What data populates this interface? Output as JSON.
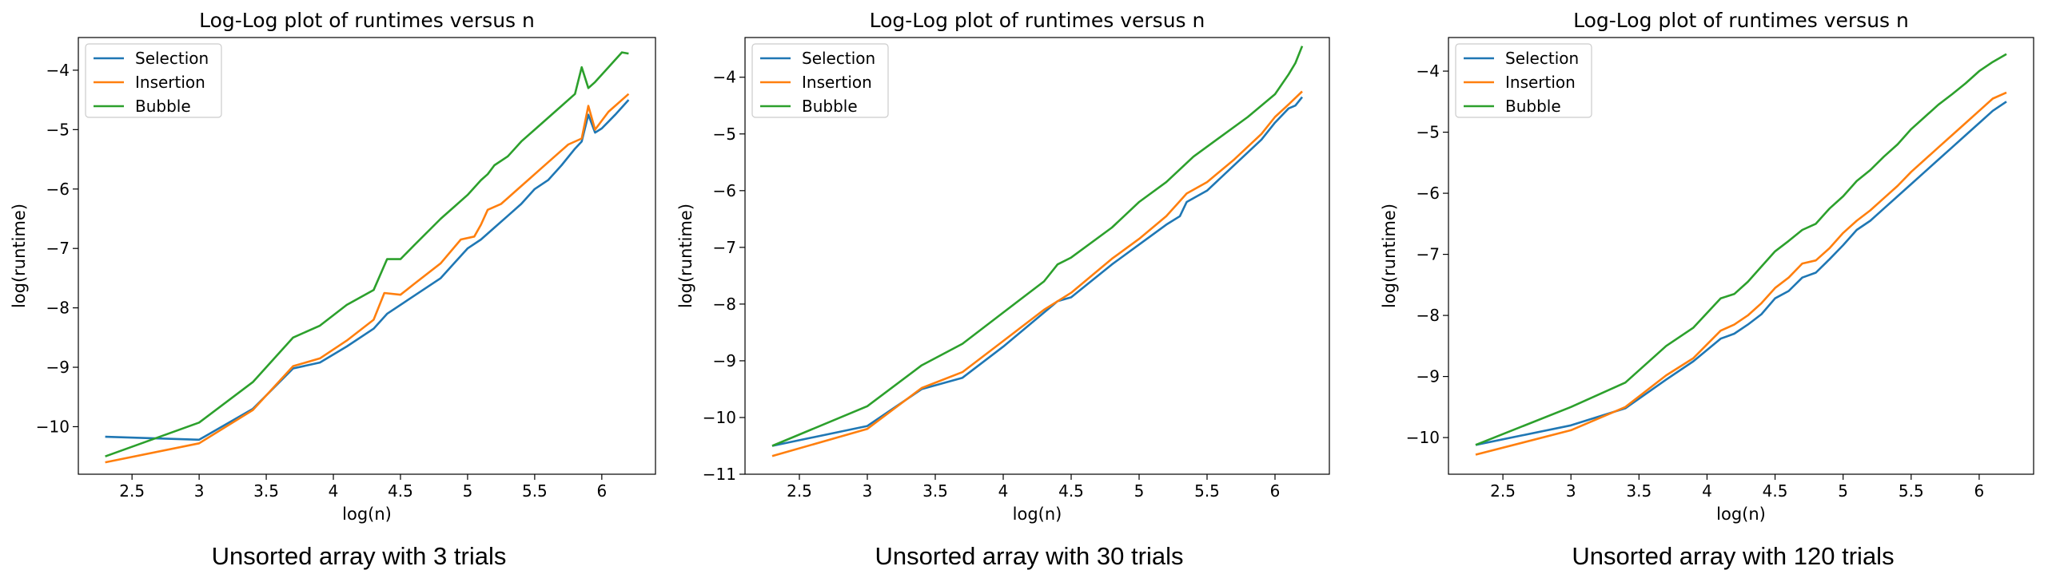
{
  "chart_data": [
    {
      "type": "line",
      "title": "Log-Log plot of runtimes versus n",
      "xlabel": "log(n)",
      "ylabel": "log(runtime)",
      "caption": "Unsorted array with 3 trials",
      "xlim": [
        2.1,
        6.4
      ],
      "ylim": [
        -10.8,
        -3.45
      ],
      "xticks": [
        2.5,
        3.0,
        3.5,
        4.0,
        4.5,
        5.0,
        5.5,
        6.0
      ],
      "yticks": [
        -10,
        -9,
        -8,
        -7,
        -6,
        -5,
        -4
      ],
      "legend_position": "upper-left",
      "series": [
        {
          "name": "Selection",
          "color": "#1f77b4",
          "x": [
            2.3,
            3.0,
            3.4,
            3.7,
            3.9,
            4.1,
            4.3,
            4.4,
            4.6,
            4.8,
            4.9,
            5.0,
            5.1,
            5.2,
            5.3,
            5.4,
            5.5,
            5.6,
            5.7,
            5.8,
            5.85,
            5.9,
            5.95,
            6.0,
            6.1,
            6.2
          ],
          "y": [
            -10.17,
            -10.22,
            -9.7,
            -9.02,
            -8.92,
            -8.65,
            -8.35,
            -8.1,
            -7.8,
            -7.5,
            -7.25,
            -7.0,
            -6.85,
            -6.65,
            -6.45,
            -6.25,
            -6.0,
            -5.85,
            -5.6,
            -5.32,
            -5.2,
            -4.75,
            -5.05,
            -4.98,
            -4.75,
            -4.5
          ]
        },
        {
          "name": "Insertion",
          "color": "#ff7f0e",
          "x": [
            2.3,
            3.0,
            3.4,
            3.7,
            3.9,
            4.1,
            4.3,
            4.38,
            4.5,
            4.6,
            4.8,
            4.95,
            5.05,
            5.1,
            5.15,
            5.25,
            5.35,
            5.45,
            5.55,
            5.65,
            5.75,
            5.85,
            5.9,
            5.95,
            6.05,
            6.2
          ],
          "y": [
            -10.6,
            -10.28,
            -9.72,
            -8.98,
            -8.85,
            -8.55,
            -8.2,
            -7.75,
            -7.78,
            -7.6,
            -7.25,
            -6.85,
            -6.8,
            -6.6,
            -6.35,
            -6.25,
            -6.05,
            -5.85,
            -5.65,
            -5.45,
            -5.25,
            -5.15,
            -4.6,
            -5.0,
            -4.7,
            -4.4
          ]
        },
        {
          "name": "Bubble",
          "color": "#2ca02c",
          "x": [
            2.3,
            3.0,
            3.4,
            3.7,
            3.9,
            4.1,
            4.3,
            4.4,
            4.5,
            4.6,
            4.8,
            4.9,
            5.0,
            5.1,
            5.15,
            5.2,
            5.3,
            5.4,
            5.5,
            5.6,
            5.7,
            5.8,
            5.85,
            5.9,
            5.95,
            6.05,
            6.15,
            6.2
          ],
          "y": [
            -10.5,
            -9.93,
            -9.25,
            -8.5,
            -8.3,
            -7.95,
            -7.7,
            -7.18,
            -7.18,
            -6.95,
            -6.5,
            -6.3,
            -6.1,
            -5.85,
            -5.75,
            -5.6,
            -5.45,
            -5.2,
            -5.0,
            -4.8,
            -4.6,
            -4.4,
            -3.95,
            -4.3,
            -4.2,
            -3.95,
            -3.7,
            -3.72
          ]
        }
      ]
    },
    {
      "type": "line",
      "title": "Log-Log plot of runtimes versus n",
      "xlabel": "log(n)",
      "ylabel": "log(runtime)",
      "caption": "Unsorted array with 30 trials",
      "xlim": [
        2.1,
        6.4
      ],
      "ylim": [
        -11.0,
        -3.3
      ],
      "xticks": [
        2.5,
        3.0,
        3.5,
        4.0,
        4.5,
        5.0,
        5.5,
        6.0
      ],
      "yticks": [
        -11,
        -10,
        -9,
        -8,
        -7,
        -6,
        -5,
        -4
      ],
      "legend_position": "upper-left",
      "series": [
        {
          "name": "Selection",
          "color": "#1f77b4",
          "x": [
            2.3,
            3.0,
            3.4,
            3.7,
            4.0,
            4.3,
            4.4,
            4.5,
            4.8,
            5.0,
            5.2,
            5.3,
            5.35,
            5.5,
            5.7,
            5.9,
            6.0,
            6.1,
            6.15,
            6.2
          ],
          "y": [
            -10.5,
            -10.15,
            -9.5,
            -9.3,
            -8.75,
            -8.15,
            -7.95,
            -7.88,
            -7.3,
            -6.95,
            -6.6,
            -6.45,
            -6.2,
            -6.0,
            -5.55,
            -5.1,
            -4.8,
            -4.55,
            -4.5,
            -4.35
          ]
        },
        {
          "name": "Insertion",
          "color": "#ff7f0e",
          "x": [
            2.3,
            3.0,
            3.4,
            3.7,
            4.0,
            4.3,
            4.5,
            4.8,
            5.0,
            5.2,
            5.35,
            5.5,
            5.7,
            5.9,
            6.0,
            6.1,
            6.2
          ],
          "y": [
            -10.68,
            -10.2,
            -9.48,
            -9.2,
            -8.65,
            -8.1,
            -7.8,
            -7.2,
            -6.85,
            -6.45,
            -6.05,
            -5.85,
            -5.45,
            -5.0,
            -4.7,
            -4.48,
            -4.25
          ]
        },
        {
          "name": "Bubble",
          "color": "#2ca02c",
          "x": [
            2.3,
            3.0,
            3.4,
            3.7,
            4.0,
            4.3,
            4.4,
            4.5,
            4.8,
            5.0,
            5.2,
            5.4,
            5.6,
            5.8,
            6.0,
            6.1,
            6.15,
            6.2
          ],
          "y": [
            -10.5,
            -9.8,
            -9.08,
            -8.7,
            -8.15,
            -7.6,
            -7.3,
            -7.18,
            -6.65,
            -6.2,
            -5.85,
            -5.4,
            -5.05,
            -4.7,
            -4.3,
            -3.95,
            -3.75,
            -3.45
          ]
        }
      ]
    },
    {
      "type": "line",
      "title": "Log-Log plot of runtimes versus n",
      "xlabel": "log(n)",
      "ylabel": "log(runtime)",
      "caption": "Unsorted array with 120 trials",
      "xlim": [
        2.1,
        6.4
      ],
      "ylim": [
        -10.6,
        -3.45
      ],
      "xticks": [
        2.5,
        3.0,
        3.5,
        4.0,
        4.5,
        5.0,
        5.5,
        6.0
      ],
      "yticks": [
        -10,
        -9,
        -8,
        -7,
        -6,
        -5,
        -4
      ],
      "legend_position": "upper-left",
      "series": [
        {
          "name": "Selection",
          "color": "#1f77b4",
          "x": [
            2.3,
            3.0,
            3.4,
            3.7,
            3.9,
            4.1,
            4.2,
            4.3,
            4.4,
            4.5,
            4.6,
            4.7,
            4.8,
            4.9,
            5.0,
            5.1,
            5.2,
            5.3,
            5.4,
            5.5,
            5.6,
            5.7,
            5.8,
            5.9,
            6.0,
            6.1,
            6.2
          ],
          "y": [
            -10.12,
            -9.8,
            -9.52,
            -9.05,
            -8.75,
            -8.38,
            -8.3,
            -8.15,
            -7.98,
            -7.72,
            -7.6,
            -7.38,
            -7.3,
            -7.08,
            -6.85,
            -6.6,
            -6.45,
            -6.25,
            -6.05,
            -5.85,
            -5.65,
            -5.45,
            -5.25,
            -5.05,
            -4.85,
            -4.65,
            -4.5
          ]
        },
        {
          "name": "Insertion",
          "color": "#ff7f0e",
          "x": [
            2.3,
            3.0,
            3.4,
            3.7,
            3.9,
            4.1,
            4.2,
            4.3,
            4.4,
            4.5,
            4.6,
            4.7,
            4.8,
            4.9,
            5.0,
            5.1,
            5.2,
            5.3,
            5.4,
            5.5,
            5.6,
            5.7,
            5.8,
            5.9,
            6.0,
            6.1,
            6.2
          ],
          "y": [
            -10.28,
            -9.88,
            -9.5,
            -8.98,
            -8.7,
            -8.25,
            -8.15,
            -8.0,
            -7.8,
            -7.55,
            -7.38,
            -7.15,
            -7.1,
            -6.9,
            -6.65,
            -6.45,
            -6.28,
            -6.08,
            -5.88,
            -5.65,
            -5.45,
            -5.25,
            -5.05,
            -4.85,
            -4.65,
            -4.45,
            -4.35
          ]
        },
        {
          "name": "Bubble",
          "color": "#2ca02c",
          "x": [
            2.3,
            3.0,
            3.4,
            3.7,
            3.9,
            4.1,
            4.2,
            4.3,
            4.4,
            4.5,
            4.6,
            4.7,
            4.8,
            4.9,
            5.0,
            5.1,
            5.2,
            5.3,
            5.4,
            5.5,
            5.6,
            5.7,
            5.8,
            5.9,
            6.0,
            6.1,
            6.2
          ],
          "y": [
            -10.12,
            -9.5,
            -9.1,
            -8.5,
            -8.2,
            -7.72,
            -7.65,
            -7.45,
            -7.2,
            -6.95,
            -6.78,
            -6.6,
            -6.5,
            -6.25,
            -6.05,
            -5.8,
            -5.62,
            -5.4,
            -5.2,
            -4.95,
            -4.75,
            -4.55,
            -4.38,
            -4.2,
            -4.0,
            -3.85,
            -3.72
          ]
        }
      ]
    }
  ]
}
